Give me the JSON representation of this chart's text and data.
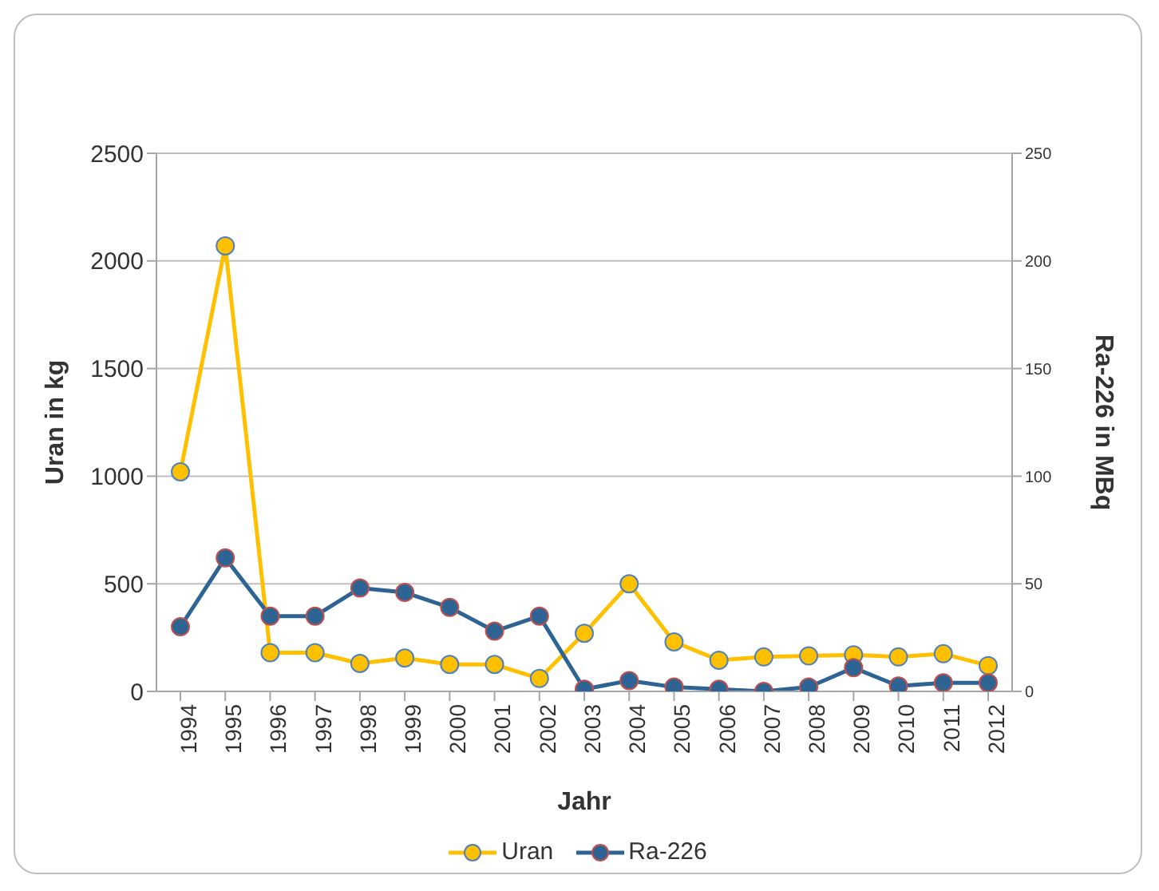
{
  "chart_data": {
    "type": "line",
    "xlabel": "Jahr",
    "ylabel": "Uran in kg",
    "y2label": "Ra-226 in MBq",
    "categories": [
      "1994",
      "1995",
      "1996",
      "1997",
      "1998",
      "1999",
      "2000",
      "2001",
      "2002",
      "2003",
      "2004",
      "2005",
      "2006",
      "2007",
      "2008",
      "2009",
      "2010",
      "2011",
      "2012"
    ],
    "series": [
      {
        "name": "Uran",
        "color": "#ffc000",
        "values": [
          1020,
          2070,
          180,
          180,
          130,
          155,
          125,
          125,
          60,
          270,
          500,
          230,
          145,
          160,
          165,
          170,
          160,
          175,
          120
        ]
      },
      {
        "name": "Ra-226",
        "color": "#2e6494",
        "axis": "y2",
        "values": [
          30,
          62,
          35,
          35,
          48,
          46,
          39,
          28,
          35,
          1,
          5,
          2,
          1,
          0,
          2,
          11,
          2.5,
          4,
          4
        ]
      }
    ],
    "ylim": [
      0,
      2500
    ],
    "yticks": [
      0,
      500,
      1000,
      1500,
      2000,
      2500
    ],
    "y2lim": [
      0,
      250
    ],
    "y2ticks": [
      0,
      50,
      100,
      150,
      200,
      250
    ],
    "grid": "y",
    "legend": "bottom",
    "marker": "circle",
    "line_style": "solid"
  }
}
